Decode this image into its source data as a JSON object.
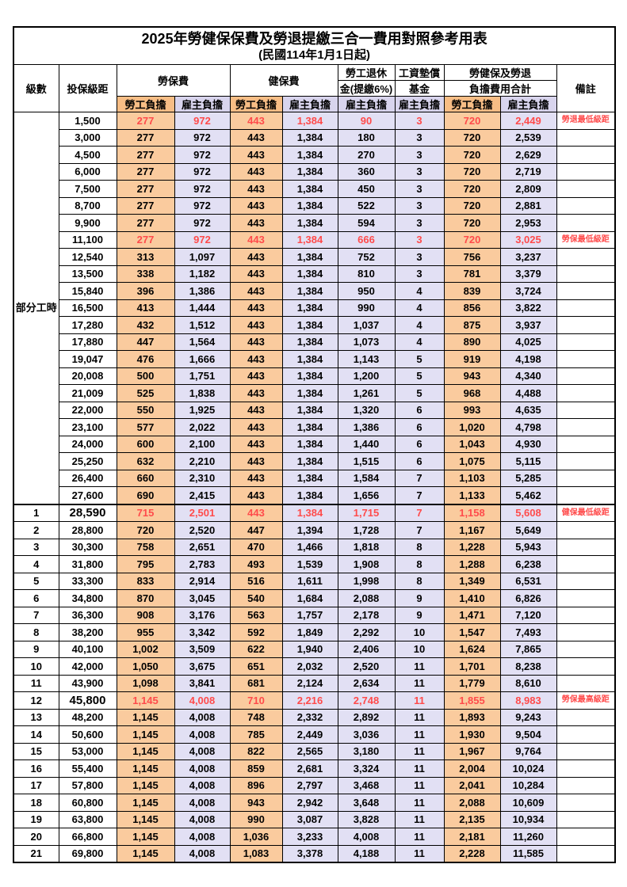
{
  "title": "2025年勞健保保費及勞退提繳三合一費用對照參考用表",
  "subtitle": "(民國114年1月1日起)",
  "columns": {
    "level": "級數",
    "bracket": "投保級距",
    "labor_fee": "勞保費",
    "health_fee": "健保費",
    "pension": [
      "勞工退休",
      "金(提繳6%)"
    ],
    "wage_fund": [
      "工資墊償",
      "基金"
    ],
    "total": [
      "勞健保及勞退",
      "負擔費用合計"
    ],
    "remark": "備註",
    "employee_share": "勞工負擔",
    "employer_share": "雇主負擔"
  },
  "value_columns_order": [
    "勞保費-勞工負擔",
    "勞保費-雇主負擔",
    "健保費-勞工負擔",
    "健保費-雇主負擔",
    "勞工退休金(提繳6%)-雇主負擔",
    "工資墊償基金-雇主負擔",
    "合計-勞工負擔",
    "合計-雇主負擔"
  ],
  "groups": {
    "part_time_label": "部分工時",
    "part_time_row_count": 23
  },
  "colors": {
    "employee_header_bg": "#F7BD85",
    "employee_cell_bg": "#FACB9E",
    "employer_header_bg": "#D8D4ED",
    "employer_cell_bg": "#E2E0F4",
    "highlight_text": "#FF4B4B",
    "grid_line": "#000000"
  },
  "rows": [
    {
      "level": "",
      "bracket": "1,500",
      "values": [
        "277",
        "972",
        "443",
        "1,384",
        "90",
        "3",
        "720",
        "2,449"
      ],
      "remark": "勞退最低級距",
      "red": true,
      "emph": false
    },
    {
      "level": "",
      "bracket": "3,000",
      "values": [
        "277",
        "972",
        "443",
        "1,384",
        "180",
        "3",
        "720",
        "2,539"
      ],
      "remark": "",
      "red": false,
      "emph": false
    },
    {
      "level": "",
      "bracket": "4,500",
      "values": [
        "277",
        "972",
        "443",
        "1,384",
        "270",
        "3",
        "720",
        "2,629"
      ],
      "remark": "",
      "red": false,
      "emph": false
    },
    {
      "level": "",
      "bracket": "6,000",
      "values": [
        "277",
        "972",
        "443",
        "1,384",
        "360",
        "3",
        "720",
        "2,719"
      ],
      "remark": "",
      "red": false,
      "emph": false
    },
    {
      "level": "",
      "bracket": "7,500",
      "values": [
        "277",
        "972",
        "443",
        "1,384",
        "450",
        "3",
        "720",
        "2,809"
      ],
      "remark": "",
      "red": false,
      "emph": false
    },
    {
      "level": "",
      "bracket": "8,700",
      "values": [
        "277",
        "972",
        "443",
        "1,384",
        "522",
        "3",
        "720",
        "2,881"
      ],
      "remark": "",
      "red": false,
      "emph": false
    },
    {
      "level": "",
      "bracket": "9,900",
      "values": [
        "277",
        "972",
        "443",
        "1,384",
        "594",
        "3",
        "720",
        "2,953"
      ],
      "remark": "",
      "red": false,
      "emph": false
    },
    {
      "level": "",
      "bracket": "11,100",
      "values": [
        "277",
        "972",
        "443",
        "1,384",
        "666",
        "3",
        "720",
        "3,025"
      ],
      "remark": "勞保最低級距",
      "red": true,
      "emph": false
    },
    {
      "level": "",
      "bracket": "12,540",
      "values": [
        "313",
        "1,097",
        "443",
        "1,384",
        "752",
        "3",
        "756",
        "3,237"
      ],
      "remark": "",
      "red": false,
      "emph": false
    },
    {
      "level": "",
      "bracket": "13,500",
      "values": [
        "338",
        "1,182",
        "443",
        "1,384",
        "810",
        "3",
        "781",
        "3,379"
      ],
      "remark": "",
      "red": false,
      "emph": false
    },
    {
      "level": "",
      "bracket": "15,840",
      "values": [
        "396",
        "1,386",
        "443",
        "1,384",
        "950",
        "4",
        "839",
        "3,724"
      ],
      "remark": "",
      "red": false,
      "emph": false
    },
    {
      "level": "",
      "bracket": "16,500",
      "values": [
        "413",
        "1,444",
        "443",
        "1,384",
        "990",
        "4",
        "856",
        "3,822"
      ],
      "remark": "",
      "red": false,
      "emph": false
    },
    {
      "level": "",
      "bracket": "17,280",
      "values": [
        "432",
        "1,512",
        "443",
        "1,384",
        "1,037",
        "4",
        "875",
        "3,937"
      ],
      "remark": "",
      "red": false,
      "emph": false
    },
    {
      "level": "",
      "bracket": "17,880",
      "values": [
        "447",
        "1,564",
        "443",
        "1,384",
        "1,073",
        "4",
        "890",
        "4,025"
      ],
      "remark": "",
      "red": false,
      "emph": false
    },
    {
      "level": "",
      "bracket": "19,047",
      "values": [
        "476",
        "1,666",
        "443",
        "1,384",
        "1,143",
        "5",
        "919",
        "4,198"
      ],
      "remark": "",
      "red": false,
      "emph": false
    },
    {
      "level": "",
      "bracket": "20,008",
      "values": [
        "500",
        "1,751",
        "443",
        "1,384",
        "1,200",
        "5",
        "943",
        "4,340"
      ],
      "remark": "",
      "red": false,
      "emph": false
    },
    {
      "level": "",
      "bracket": "21,009",
      "values": [
        "525",
        "1,838",
        "443",
        "1,384",
        "1,261",
        "5",
        "968",
        "4,488"
      ],
      "remark": "",
      "red": false,
      "emph": false
    },
    {
      "level": "",
      "bracket": "22,000",
      "values": [
        "550",
        "1,925",
        "443",
        "1,384",
        "1,320",
        "6",
        "993",
        "4,635"
      ],
      "remark": "",
      "red": false,
      "emph": false
    },
    {
      "level": "",
      "bracket": "23,100",
      "values": [
        "577",
        "2,022",
        "443",
        "1,384",
        "1,386",
        "6",
        "1,020",
        "4,798"
      ],
      "remark": "",
      "red": false,
      "emph": false
    },
    {
      "level": "",
      "bracket": "24,000",
      "values": [
        "600",
        "2,100",
        "443",
        "1,384",
        "1,440",
        "6",
        "1,043",
        "4,930"
      ],
      "remark": "",
      "red": false,
      "emph": false
    },
    {
      "level": "",
      "bracket": "25,250",
      "values": [
        "632",
        "2,210",
        "443",
        "1,384",
        "1,515",
        "6",
        "1,075",
        "5,115"
      ],
      "remark": "",
      "red": false,
      "emph": false
    },
    {
      "level": "",
      "bracket": "26,400",
      "values": [
        "660",
        "2,310",
        "443",
        "1,384",
        "1,584",
        "7",
        "1,103",
        "5,285"
      ],
      "remark": "",
      "red": false,
      "emph": false
    },
    {
      "level": "",
      "bracket": "27,600",
      "values": [
        "690",
        "2,415",
        "443",
        "1,384",
        "1,656",
        "7",
        "1,133",
        "5,462"
      ],
      "remark": "",
      "red": false,
      "emph": false
    },
    {
      "level": "1",
      "bracket": "28,590",
      "values": [
        "715",
        "2,501",
        "443",
        "1,384",
        "1,715",
        "7",
        "1,158",
        "5,608"
      ],
      "remark": "健保最低級距",
      "red": true,
      "emph": true
    },
    {
      "level": "2",
      "bracket": "28,800",
      "values": [
        "720",
        "2,520",
        "447",
        "1,394",
        "1,728",
        "7",
        "1,167",
        "5,649"
      ],
      "remark": "",
      "red": false,
      "emph": false
    },
    {
      "level": "3",
      "bracket": "30,300",
      "values": [
        "758",
        "2,651",
        "470",
        "1,466",
        "1,818",
        "8",
        "1,228",
        "5,943"
      ],
      "remark": "",
      "red": false,
      "emph": false
    },
    {
      "level": "4",
      "bracket": "31,800",
      "values": [
        "795",
        "2,783",
        "493",
        "1,539",
        "1,908",
        "8",
        "1,288",
        "6,238"
      ],
      "remark": "",
      "red": false,
      "emph": false
    },
    {
      "level": "5",
      "bracket": "33,300",
      "values": [
        "833",
        "2,914",
        "516",
        "1,611",
        "1,998",
        "8",
        "1,349",
        "6,531"
      ],
      "remark": "",
      "red": false,
      "emph": false
    },
    {
      "level": "6",
      "bracket": "34,800",
      "values": [
        "870",
        "3,045",
        "540",
        "1,684",
        "2,088",
        "9",
        "1,410",
        "6,826"
      ],
      "remark": "",
      "red": false,
      "emph": false
    },
    {
      "level": "7",
      "bracket": "36,300",
      "values": [
        "908",
        "3,176",
        "563",
        "1,757",
        "2,178",
        "9",
        "1,471",
        "7,120"
      ],
      "remark": "",
      "red": false,
      "emph": false
    },
    {
      "level": "8",
      "bracket": "38,200",
      "values": [
        "955",
        "3,342",
        "592",
        "1,849",
        "2,292",
        "10",
        "1,547",
        "7,493"
      ],
      "remark": "",
      "red": false,
      "emph": false
    },
    {
      "level": "9",
      "bracket": "40,100",
      "values": [
        "1,002",
        "3,509",
        "622",
        "1,940",
        "2,406",
        "10",
        "1,624",
        "7,865"
      ],
      "remark": "",
      "red": false,
      "emph": false
    },
    {
      "level": "10",
      "bracket": "42,000",
      "values": [
        "1,050",
        "3,675",
        "651",
        "2,032",
        "2,520",
        "11",
        "1,701",
        "8,238"
      ],
      "remark": "",
      "red": false,
      "emph": false
    },
    {
      "level": "11",
      "bracket": "43,900",
      "values": [
        "1,098",
        "3,841",
        "681",
        "2,124",
        "2,634",
        "11",
        "1,779",
        "8,610"
      ],
      "remark": "",
      "red": false,
      "emph": false
    },
    {
      "level": "12",
      "bracket": "45,800",
      "values": [
        "1,145",
        "4,008",
        "710",
        "2,216",
        "2,748",
        "11",
        "1,855",
        "8,983"
      ],
      "remark": "勞保最高級距",
      "red": true,
      "emph": true
    },
    {
      "level": "13",
      "bracket": "48,200",
      "values": [
        "1,145",
        "4,008",
        "748",
        "2,332",
        "2,892",
        "11",
        "1,893",
        "9,243"
      ],
      "remark": "",
      "red": false,
      "emph": false
    },
    {
      "level": "14",
      "bracket": "50,600",
      "values": [
        "1,145",
        "4,008",
        "785",
        "2,449",
        "3,036",
        "11",
        "1,930",
        "9,504"
      ],
      "remark": "",
      "red": false,
      "emph": false
    },
    {
      "level": "15",
      "bracket": "53,000",
      "values": [
        "1,145",
        "4,008",
        "822",
        "2,565",
        "3,180",
        "11",
        "1,967",
        "9,764"
      ],
      "remark": "",
      "red": false,
      "emph": false
    },
    {
      "level": "16",
      "bracket": "55,400",
      "values": [
        "1,145",
        "4,008",
        "859",
        "2,681",
        "3,324",
        "11",
        "2,004",
        "10,024"
      ],
      "remark": "",
      "red": false,
      "emph": false
    },
    {
      "level": "17",
      "bracket": "57,800",
      "values": [
        "1,145",
        "4,008",
        "896",
        "2,797",
        "3,468",
        "11",
        "2,041",
        "10,284"
      ],
      "remark": "",
      "red": false,
      "emph": false
    },
    {
      "level": "18",
      "bracket": "60,800",
      "values": [
        "1,145",
        "4,008",
        "943",
        "2,942",
        "3,648",
        "11",
        "2,088",
        "10,609"
      ],
      "remark": "",
      "red": false,
      "emph": false
    },
    {
      "level": "19",
      "bracket": "63,800",
      "values": [
        "1,145",
        "4,008",
        "990",
        "3,087",
        "3,828",
        "11",
        "2,135",
        "10,934"
      ],
      "remark": "",
      "red": false,
      "emph": false
    },
    {
      "level": "20",
      "bracket": "66,800",
      "values": [
        "1,145",
        "4,008",
        "1,036",
        "3,233",
        "4,008",
        "11",
        "2,181",
        "11,260"
      ],
      "remark": "",
      "red": false,
      "emph": false
    },
    {
      "level": "21",
      "bracket": "69,800",
      "values": [
        "1,145",
        "4,008",
        "1,083",
        "3,378",
        "4,188",
        "11",
        "2,228",
        "11,585"
      ],
      "remark": "",
      "red": false,
      "emph": false
    }
  ]
}
